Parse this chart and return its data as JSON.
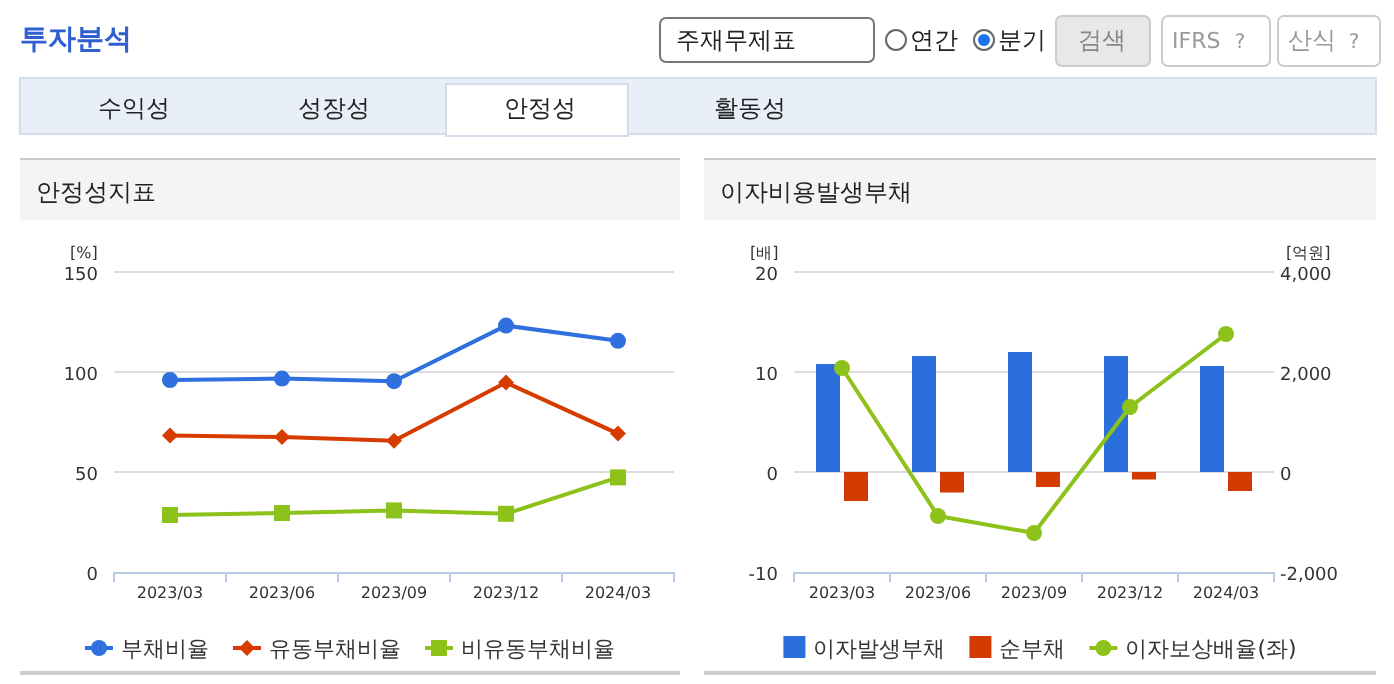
{
  "chart_data": [
    {
      "type": "other",
      "annotations": [
        "투자분석",
        "주재무제표",
        "연간",
        "분기",
        "검색",
        "IFRS",
        "?",
        "산식",
        "?",
        "수익성",
        "성장성",
        "안정성",
        "활동성"
      ]
    },
    {
      "type": "line",
      "title": "안정성지표",
      "ylabel": "[%]",
      "categories": [
        "2023/03",
        "2023/06",
        "2023/09",
        "2023/12",
        "2024/03"
      ],
      "ylim": [
        0,
        150
      ],
      "yticks": [
        0,
        50,
        100,
        150
      ],
      "grid": "y",
      "legend": "bottom",
      "line_style": "solid",
      "series": [
        {
          "name": "부채비율",
          "color": "#2f6fde",
          "marker": "circle",
          "values": [
            96.0,
            96.7,
            95.4,
            123.2,
            115.6
          ]
        },
        {
          "name": "유동부채비율",
          "color": "#d63b00",
          "marker": "diamond",
          "values": [
            68.2,
            67.5,
            65.6,
            94.7,
            69.2
          ]
        },
        {
          "name": "비유동부채비율",
          "color": "#8cc21a",
          "marker": "square",
          "values": [
            28.5,
            29.5,
            30.8,
            29.1,
            47.3
          ]
        }
      ]
    },
    {
      "type": "bar",
      "title": "이자비용발생부채",
      "ylabel": "[배]",
      "y2label": "[억원]",
      "categories": [
        "2023/03",
        "2023/06",
        "2023/09",
        "2023/12",
        "2024/03"
      ],
      "ylim": [
        -10,
        20
      ],
      "yticks": [
        -10,
        0,
        10,
        20
      ],
      "y2lim": [
        -2000,
        4000
      ],
      "y2ticks": [
        {
          "value": -2000,
          "label": "-2,000"
        },
        0,
        {
          "value": 2000,
          "label": "2,000"
        },
        {
          "value": 4000,
          "label": "4,000"
        }
      ],
      "grid": "y",
      "legend": "bottom",
      "series": [
        {
          "name": "이자발생부채",
          "type": "bar",
          "axis": "y2",
          "color": "#2a6fdc",
          "values": [
            2160,
            2320,
            2400,
            2320,
            2120
          ]
        },
        {
          "name": "순부채",
          "type": "bar",
          "axis": "y2",
          "color": "#d33b00",
          "values": [
            -580,
            -410,
            -300,
            -150,
            -380
          ]
        },
        {
          "name": "이자보상배율(좌)",
          "type": "line",
          "color": "#8cc21a",
          "marker": "circle",
          "values": [
            10.4,
            -4.4,
            -6.1,
            6.5,
            13.8
          ]
        }
      ]
    }
  ]
}
